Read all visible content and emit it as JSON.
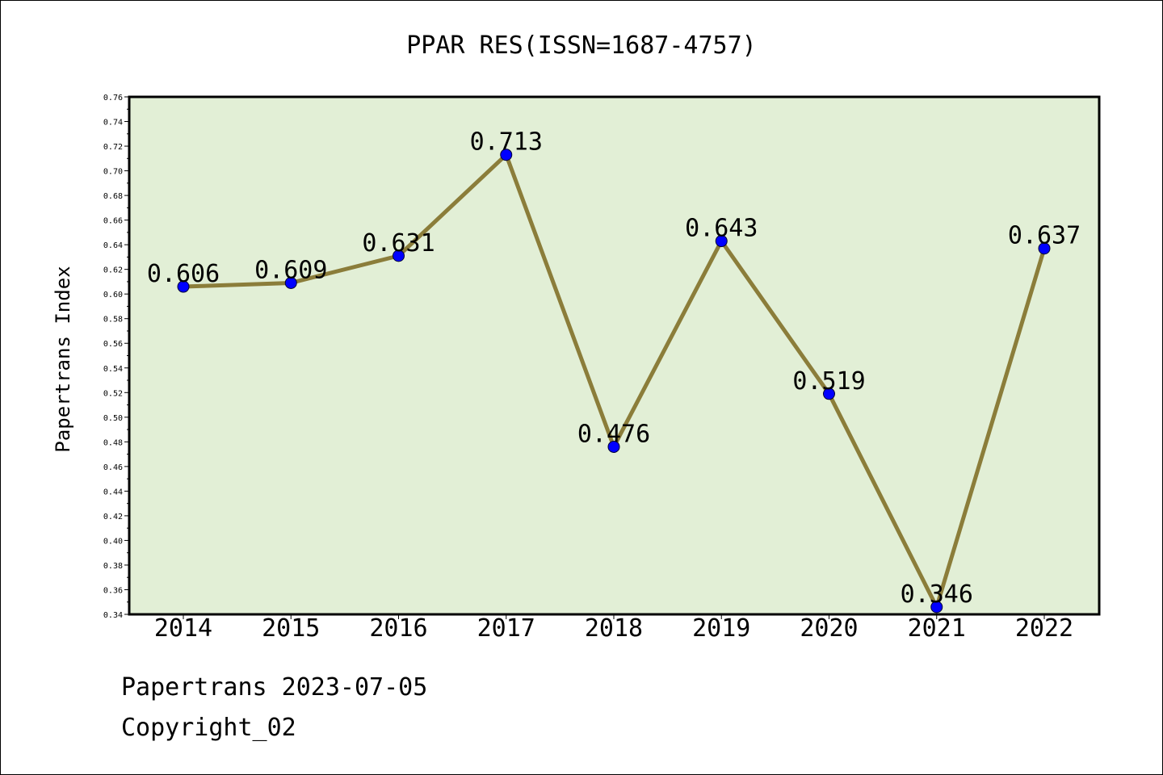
{
  "chart_data": {
    "type": "line",
    "title": "PPAR RES(ISSN=1687-4757)",
    "ylabel": "Papertrans Index",
    "xlabel": "",
    "x": [
      "2014",
      "2015",
      "2016",
      "2017",
      "2018",
      "2019",
      "2020",
      "2021",
      "2022"
    ],
    "values": [
      0.606,
      0.609,
      0.631,
      0.713,
      0.476,
      0.643,
      0.519,
      0.346,
      0.637
    ],
    "data_labels": [
      "0.606",
      "0.609",
      "0.631",
      "0.713",
      "0.476",
      "0.643",
      "0.519",
      "0.346",
      "0.637"
    ],
    "ylim": [
      0.34,
      0.76
    ],
    "y_tick_step": 0.02,
    "grid": false,
    "colors": {
      "plot_background": "#e2efd6",
      "line": "#8b7d3a",
      "marker": "#0000ff"
    }
  },
  "footer": {
    "line1": "Papertrans 2023-07-05",
    "line2": "Copyright_02"
  }
}
